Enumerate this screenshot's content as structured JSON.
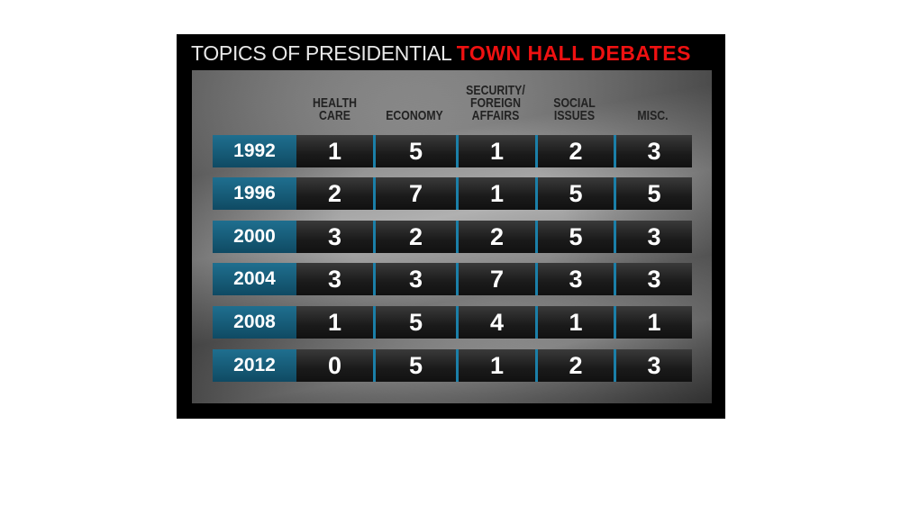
{
  "title": {
    "prefix": "TOPICS OF PRESIDENTIAL",
    "highlight": "TOWN HALL DEBATES"
  },
  "colors": {
    "highlight": "#ee1111",
    "year_cell": "#16607e",
    "divider": "#1b7fa8"
  },
  "chart_data": {
    "type": "table",
    "title": "TOPICS OF PRESIDENTIAL TOWN HALL DEBATES",
    "columns": [
      "HEALTH\nCARE",
      "ECONOMY",
      "SECURITY/\nFOREIGN\nAFFAIRS",
      "SOCIAL\nISSUES",
      "MISC."
    ],
    "rows": [
      {
        "year": "1992",
        "values": [
          1,
          5,
          1,
          2,
          3
        ]
      },
      {
        "year": "1996",
        "values": [
          2,
          7,
          1,
          5,
          5
        ]
      },
      {
        "year": "2000",
        "values": [
          3,
          2,
          2,
          5,
          3
        ]
      },
      {
        "year": "2004",
        "values": [
          3,
          3,
          7,
          3,
          3
        ]
      },
      {
        "year": "2008",
        "values": [
          1,
          5,
          4,
          1,
          1
        ]
      },
      {
        "year": "2012",
        "values": [
          0,
          5,
          1,
          2,
          3
        ]
      }
    ]
  }
}
